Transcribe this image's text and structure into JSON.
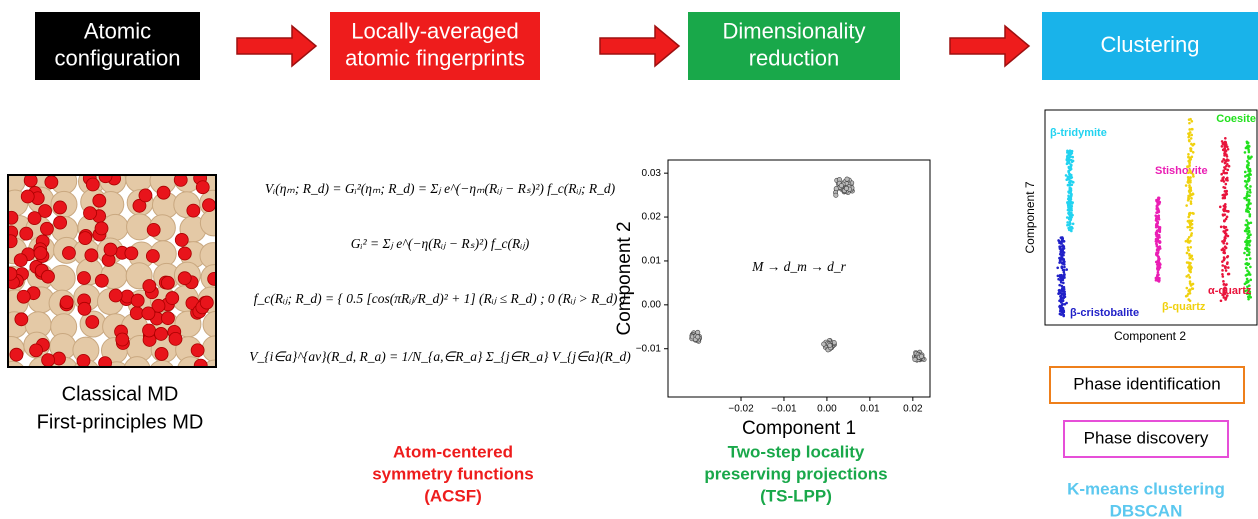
{
  "steps": [
    {
      "lines": [
        "Atomic",
        "configuration"
      ],
      "color": "#000000"
    },
    {
      "lines": [
        "Locally-averaged",
        "atomic fingerprints"
      ],
      "color": "#ee1c1c"
    },
    {
      "lines": [
        "Dimensionality",
        "reduction"
      ],
      "color": "#19a84a"
    },
    {
      "lines": [
        "Clustering"
      ],
      "color": "#19b3ea"
    }
  ],
  "md_caption": [
    "Classical MD",
    "First-principles MD"
  ],
  "acsf": {
    "equations": [
      "Vᵢ(ηₘ; R_d) = Gᵢ²(ηₘ; R_d) = Σⱼ e^(−ηₘ(Rᵢⱼ − Rₛ)²) f_c(Rᵢⱼ; R_d)",
      "Gᵢ² = Σⱼ e^(−η(Rᵢⱼ − Rₛ)²) f_c(Rᵢⱼ)",
      "f_c(Rᵢⱼ; R_d) = { 0.5 [cos(πRᵢⱼ/R_d)² + 1] (Rᵢⱼ ≤ R_d) ; 0 (Rᵢⱼ > R_d) }",
      "V_{i∈a}^{av}(R_d, R_a) = 1/N_{a,∈R_a} Σ_{j∈R_a} V_{j∈a}(R_d)"
    ],
    "caption": [
      "Atom-centered",
      "symmetry functions",
      "(ACSF)"
    ],
    "caption_color": "#ee1c1c"
  },
  "tslpp": {
    "plot": {
      "type": "scatter",
      "formula": "M → d_m → d_r",
      "xlabel": "Component 1",
      "ylabel": "Component 2",
      "xlim": [
        -0.037,
        0.024
      ],
      "ylim": [
        -0.021,
        0.033
      ],
      "xticks": [
        {
          "value": -0.02,
          "label": "−0.02"
        },
        {
          "value": -0.01,
          "label": "−0.01"
        },
        {
          "value": 0,
          "label": "0.00"
        },
        0.01,
        0.02
      ],
      "yticks": [
        {
          "value": -0.01,
          "label": "−0.01"
        },
        {
          "value": 0,
          "label": "0.00"
        },
        0.01,
        0.02,
        0.03
      ],
      "clusters": [
        {
          "x": 0.004,
          "y": 0.027
        },
        {
          "x": -0.0305,
          "y": -0.0073
        },
        {
          "x": 0.0005,
          "y": -0.0093
        },
        {
          "x": 0.0214,
          "y": -0.0118
        }
      ]
    },
    "caption": [
      "Two-step locality",
      "preserving projections",
      "(TS-LPP)"
    ],
    "caption_color": "#19a84a"
  },
  "clustering": {
    "plot": {
      "xlabel": "Component 2",
      "ylabel": "Component 7",
      "phases": [
        {
          "name": "β-tridymite",
          "color": "#22d3f0"
        },
        {
          "name": "Coesite",
          "color": "#22e01e"
        },
        {
          "name": "Stishovite",
          "color": "#ea1eb4"
        },
        {
          "name": "β-cristobalite",
          "color": "#2121c8"
        },
        {
          "name": "β-quartz",
          "color": "#f0d10e"
        },
        {
          "name": "α-quartz",
          "color": "#e8143c"
        }
      ]
    },
    "boxes": [
      {
        "label": "Phase identification",
        "color": "#ee7f1b"
      },
      {
        "label": "Phase discovery",
        "color": "#e64fd8"
      }
    ],
    "caption": [
      "K-means clustering",
      "DBSCAN"
    ],
    "caption_color": "#5cc8ef"
  }
}
